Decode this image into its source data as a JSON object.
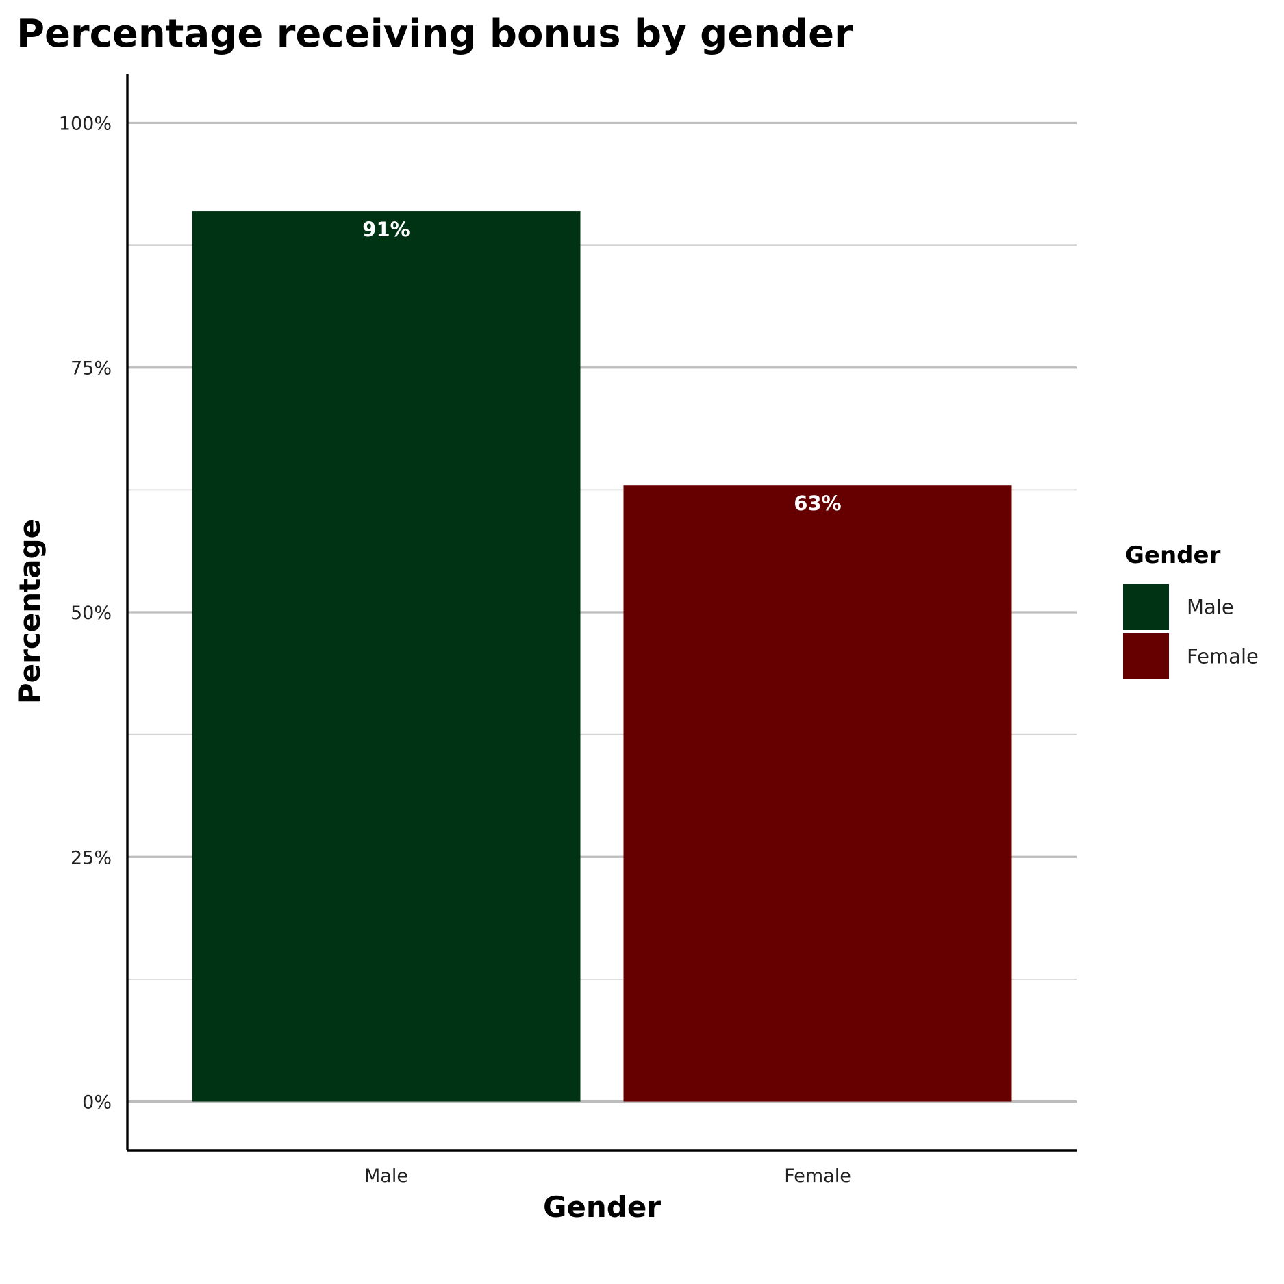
{
  "chart_data": {
    "type": "bar",
    "title": "Percentage receiving bonus by gender",
    "xlabel": "Gender",
    "ylabel": "Percentage",
    "categories": [
      "Male",
      "Female"
    ],
    "values": [
      91,
      63
    ],
    "value_labels": [
      "91%",
      "63%"
    ],
    "colors": [
      "#003314",
      "#660000"
    ],
    "ylim": [
      -5,
      105
    ],
    "y_ticks": [
      0,
      25,
      50,
      75,
      100
    ],
    "y_tick_labels": [
      "0%",
      "25%",
      "50%",
      "75%",
      "100%"
    ],
    "grid": true,
    "legend": {
      "title": "Gender",
      "position": "right",
      "entries": [
        "Male",
        "Female"
      ]
    }
  }
}
